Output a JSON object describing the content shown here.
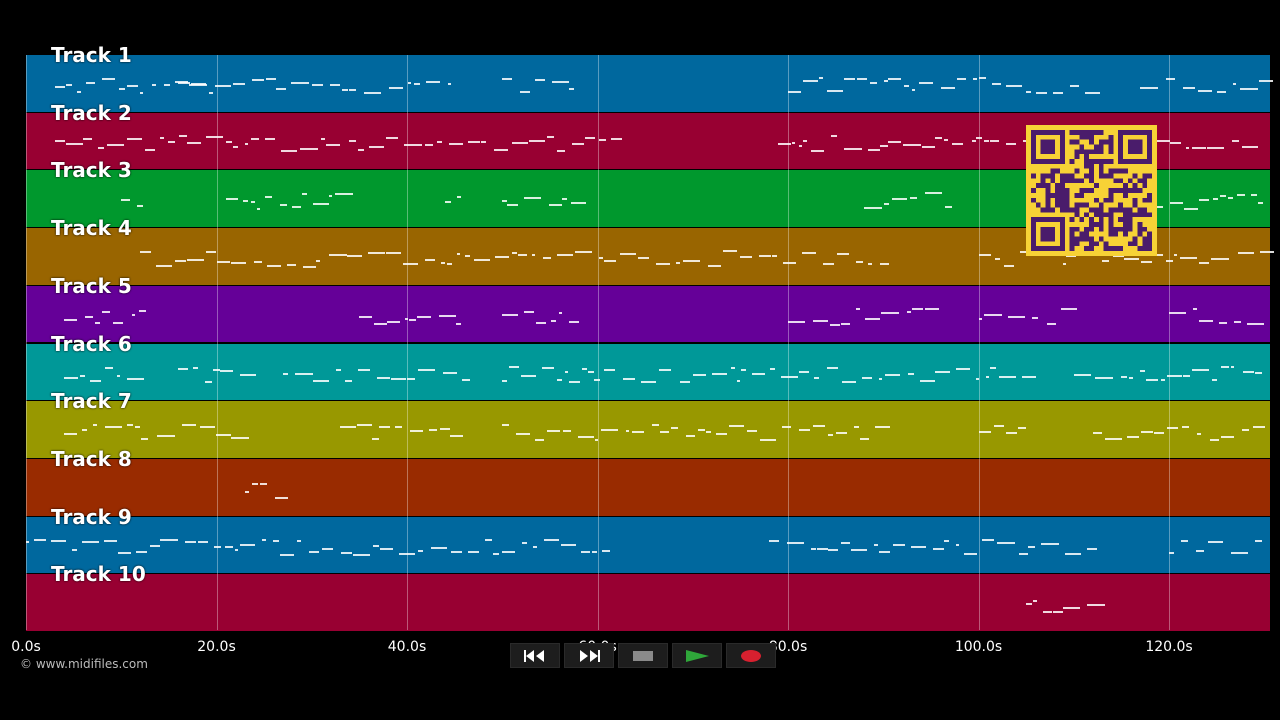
{
  "tracks": [
    {
      "label": "Track 1",
      "color": "#00689e"
    },
    {
      "label": "Track 2",
      "color": "#980032"
    },
    {
      "label": "Track 3",
      "color": "#00982d"
    },
    {
      "label": "Track 4",
      "color": "#996500"
    },
    {
      "label": "Track 5",
      "color": "#650098"
    },
    {
      "label": "Track 6",
      "color": "#009898"
    },
    {
      "label": "Track 7",
      "color": "#989800"
    },
    {
      "label": "Track 8",
      "color": "#992b00"
    },
    {
      "label": "Track 9",
      "color": "#00689e"
    },
    {
      "label": "Track 10",
      "color": "#980032"
    }
  ],
  "timeline": {
    "ticks": [
      "0.0s",
      "20.0s",
      "40.0s",
      "60.0s",
      "80.0s",
      "100.0s",
      "120.0s"
    ],
    "tick_seconds": [
      0,
      20,
      40,
      60,
      80,
      100,
      120
    ],
    "max_seconds": 130.6
  },
  "copyright": "© www.midifiles.com",
  "transport": {
    "buttons": [
      {
        "name": "rewind",
        "icon": "rewind-icon"
      },
      {
        "name": "fast-forward",
        "icon": "fast-forward-icon"
      },
      {
        "name": "stop",
        "icon": "stop-icon"
      },
      {
        "name": "play",
        "icon": "play-icon"
      },
      {
        "name": "record",
        "icon": "record-icon"
      }
    ]
  },
  "qr_code": {
    "icon": "qr-code-icon",
    "color": "#f7d236",
    "module_color": "#4a1c6b"
  }
}
